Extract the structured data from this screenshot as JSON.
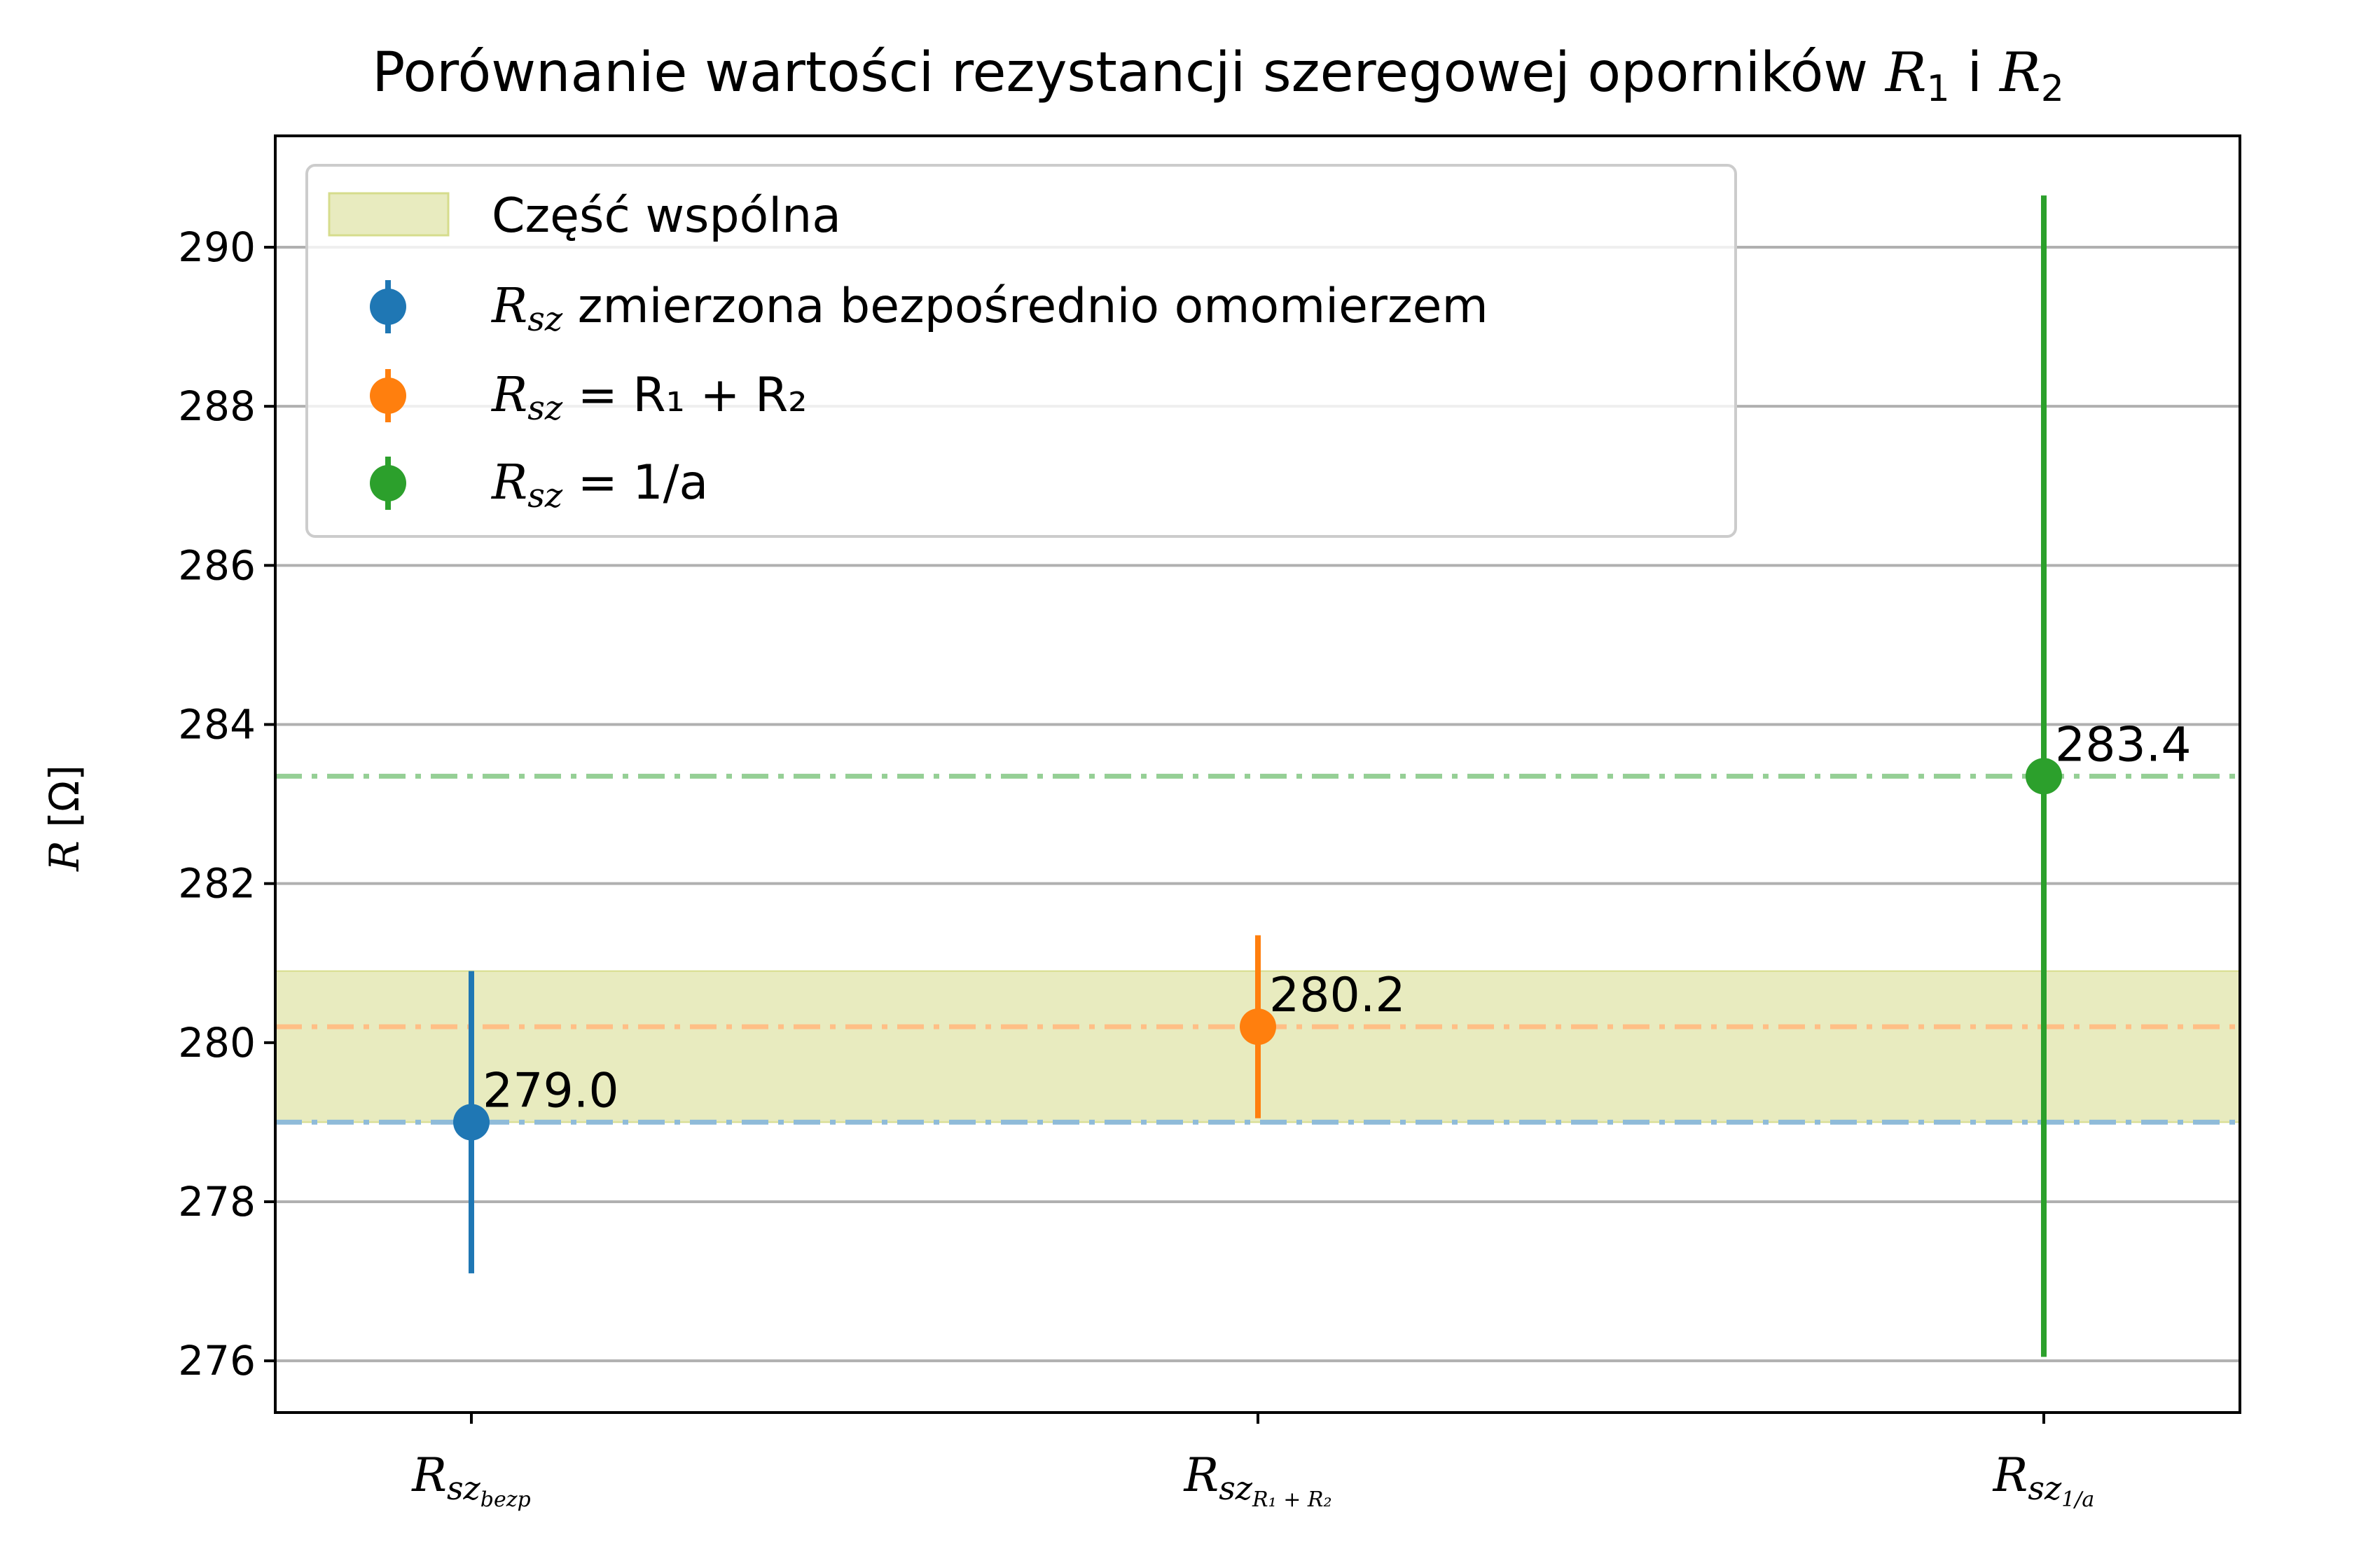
{
  "chart_data": {
    "type": "scatter",
    "title": {
      "text": "Porównanie wartości rezystancji szeregowej oporników ",
      "r1": "R",
      "r1_sub": "1",
      "mid": " i ",
      "r2": "R",
      "r2_sub": "2"
    },
    "ylabel": {
      "sym": "R",
      "unit": " [Ω]"
    },
    "ylim": [
      275.35,
      291.4
    ],
    "yticks": [
      276,
      278,
      280,
      282,
      284,
      286,
      288,
      290
    ],
    "grid": "horizontal",
    "legend_position": "upper left",
    "common_band": {
      "label": "Część wspólna",
      "low": 279.0,
      "high": 280.9,
      "color": "#e8ebbf",
      "edge": "#d6dc8c"
    },
    "series": [
      {
        "category_main": "R",
        "category_sub": "sz",
        "category_subsub": "bezp",
        "value": 279.0,
        "error": 1.9,
        "label": "279.0",
        "color": "#1f77b4",
        "refline_color": "#8fbbd9",
        "legend": {
          "sym": "R",
          "sub": "sz",
          "rest": " zmierzona bezpośrednio omomierzem"
        }
      },
      {
        "category_main": "R",
        "category_sub": "sz",
        "category_subsub": "R₁ + R₂",
        "value": 280.2,
        "error": 1.15,
        "label": "280.2",
        "color": "#ff7f0e",
        "refline_color": "#ffbf86",
        "legend": {
          "sym": "R",
          "sub": "sz",
          "rest": " = R₁ + R₂"
        }
      },
      {
        "category_main": "R",
        "category_sub": "sz",
        "category_subsub": "1/a",
        "value": 283.35,
        "error": 7.3,
        "label": "283.4",
        "color": "#2ca02c",
        "refline_color": "#95cf95",
        "legend": {
          "sym": "R",
          "sub": "sz",
          "rest": " = 1/a"
        }
      }
    ]
  }
}
